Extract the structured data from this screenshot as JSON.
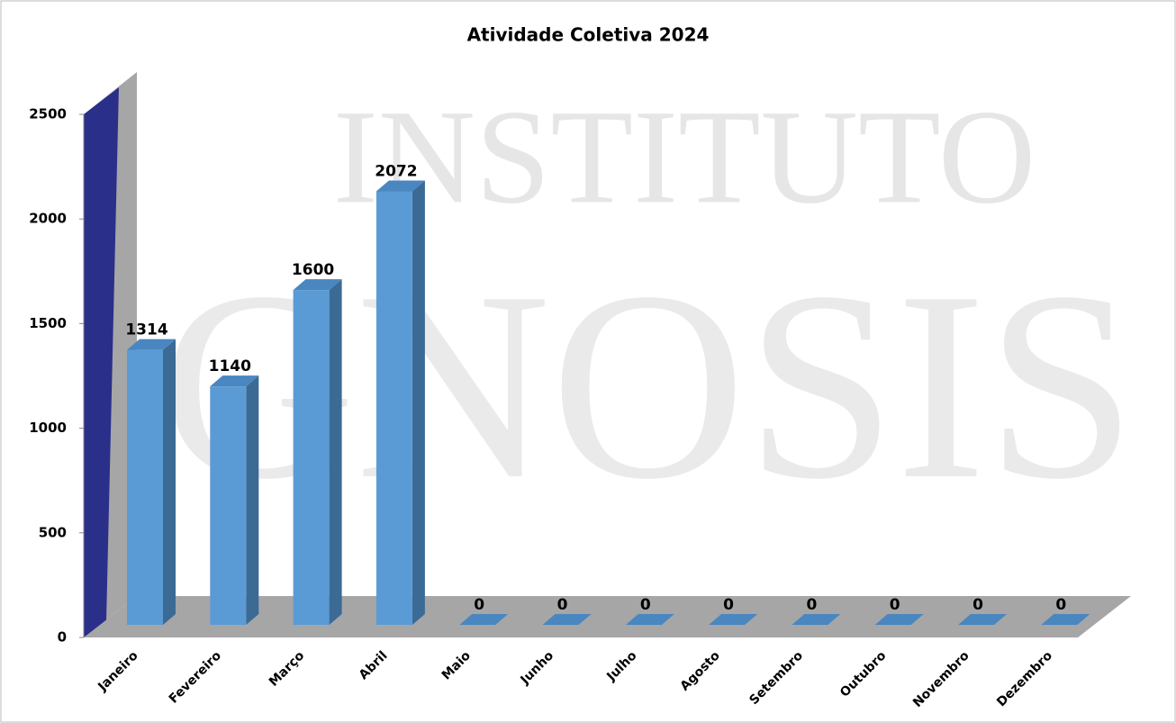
{
  "chart_data": {
    "type": "bar3d",
    "title": "Atividade Coletiva 2024",
    "watermark": [
      "INSTITUTO",
      "GNOSIS"
    ],
    "categories": [
      "Janeiro",
      "Fevereiro",
      "Março",
      "Abril",
      "Maio",
      "Junho",
      "Julho",
      "Agosto",
      "Setembro",
      "Outubro",
      "Novembro",
      "Dezembro"
    ],
    "values": [
      1314,
      1140,
      1600,
      2072,
      0,
      0,
      0,
      0,
      0,
      0,
      0,
      0
    ],
    "color": "#5b9bd5",
    "ylim": [
      0,
      2500
    ],
    "yticks": [
      0,
      500,
      1000,
      1500,
      2000,
      2500
    ],
    "grid": false
  }
}
